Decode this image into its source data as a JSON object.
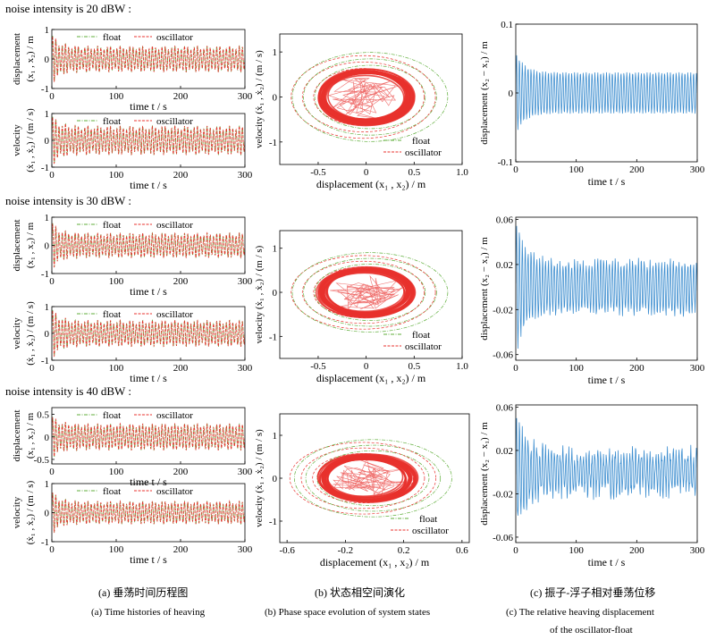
{
  "noise_rows": [
    {
      "label": "noise intensity is 20 dBW :"
    },
    {
      "label": "noise intensity is 30 dBW :"
    },
    {
      "label": "noise intensity is 40 dBW :"
    }
  ],
  "legend": {
    "float": "float",
    "oscillator": "oscillator"
  },
  "colors": {
    "float": "#5fae3a",
    "oscillator": "#e8312d",
    "relative": "#3f8fd0",
    "axis": "#000000"
  },
  "panel_labels": {
    "time_x": "time t / s",
    "disp_y_l1": "displacement",
    "disp_y_l2": "(x₁ , x₂) / m",
    "vel_y_l1": "velocity",
    "vel_y_l2": "(ẋ₁ , ẋ₂) / (m / s)",
    "phase_x": "displacement  (x₁ , x₂) / m",
    "phase_y": "velocity (ẋ₁ , ẋ₂) / (m / s)",
    "rel_y": "displacement (x₂ − x₁) / m"
  },
  "captions": {
    "a_cn": "(a) 垂荡时间历程图",
    "a_en": "(a) Time histories of heaving",
    "b_cn": "(b) 状态相空间演化",
    "b_en": "(b) Phase space evolution of system states",
    "c_cn": "(c) 振子-浮子相对垂荡位移",
    "c_en_1": "(c) The relative heaving displacement",
    "c_en_2": "of the oscillator-float"
  },
  "chart_data": [
    {
      "id": "a1",
      "type": "line",
      "noise": "20 dBW",
      "xlabel": "time t / s",
      "ylabel": "displacement (x1, x2) / m",
      "xlim": [
        0,
        300
      ],
      "ylim": [
        -1,
        1
      ],
      "xticks": [
        0,
        100,
        200,
        300
      ],
      "yticks": [
        -1,
        0,
        1
      ],
      "series": [
        {
          "name": "float",
          "style": "dash-dot",
          "amplitude": 0.45,
          "initial_peak": 0.9,
          "period_s": 5
        },
        {
          "name": "oscillator",
          "style": "dashed",
          "amplitude": 0.45,
          "initial_peak": 0.9,
          "period_s": 5
        }
      ],
      "legend": "top-right"
    },
    {
      "id": "a2",
      "type": "line",
      "noise": "20 dBW",
      "xlabel": "time t / s",
      "ylabel": "velocity (ẋ1, ẋ2) / (m/s)",
      "xlim": [
        0,
        300
      ],
      "ylim": [
        -1,
        1
      ],
      "xticks": [
        0,
        100,
        200,
        300
      ],
      "yticks": [
        -1,
        0,
        1
      ],
      "series": [
        {
          "name": "float",
          "style": "dash-dot",
          "amplitude": 0.55,
          "initial_peak": 1.0,
          "period_s": 5
        },
        {
          "name": "oscillator",
          "style": "dashed",
          "amplitude": 0.55,
          "initial_peak": 1.0,
          "period_s": 5
        }
      ],
      "legend": "top-right"
    },
    {
      "id": "b1",
      "type": "line",
      "noise": "20 dBW",
      "xlabel": "displacement (x1, x2) / m",
      "ylabel": "velocity (ẋ1, ẋ2) / (m/s)",
      "xlim": [
        -0.9,
        1.0
      ],
      "ylim": [
        -1.5,
        1.4
      ],
      "xticks": [
        -0.5,
        0,
        0.5,
        1.0
      ],
      "yticks": [
        -1,
        0,
        1
      ],
      "orbit": {
        "center_x": 0.0,
        "radius_x": 0.45,
        "radius_y": 0.55
      },
      "series": [
        {
          "name": "float"
        },
        {
          "name": "oscillator"
        }
      ],
      "legend": "bottom-right"
    },
    {
      "id": "c1",
      "type": "line",
      "noise": "20 dBW",
      "xlabel": "time t / s",
      "ylabel": "displacement (x2 − x1) / m",
      "xlim": [
        0,
        300
      ],
      "ylim": [
        -0.1,
        0.1
      ],
      "xticks": [
        0,
        100,
        200,
        300
      ],
      "yticks": [
        -0.1,
        0,
        0.1
      ],
      "series": [
        {
          "amplitude": 0.03,
          "initial_peak": 0.06
        }
      ]
    },
    {
      "id": "a3",
      "type": "line",
      "noise": "30 dBW",
      "xlabel": "time t / s",
      "ylabel": "displacement (x1, x2) / m",
      "xlim": [
        0,
        300
      ],
      "ylim": [
        -1,
        1
      ],
      "xticks": [
        0,
        100,
        200,
        300
      ],
      "yticks": [
        -1,
        0,
        1
      ],
      "series": [
        {
          "name": "float",
          "style": "dash-dot",
          "amplitude": 0.45,
          "initial_peak": 0.9,
          "period_s": 5
        },
        {
          "name": "oscillator",
          "style": "dashed",
          "amplitude": 0.45,
          "initial_peak": 0.9,
          "period_s": 5
        }
      ],
      "legend": "top-right"
    },
    {
      "id": "a4",
      "type": "line",
      "noise": "30 dBW",
      "xlabel": "time t / s",
      "ylabel": "velocity (ẋ1, ẋ2) / (m/s)",
      "xlim": [
        0,
        300
      ],
      "ylim": [
        -1,
        1
      ],
      "xticks": [
        0,
        100,
        200,
        300
      ],
      "yticks": [
        -1,
        0,
        1
      ],
      "series": [
        {
          "name": "float",
          "style": "dash-dot",
          "amplitude": 0.5,
          "initial_peak": 1.0,
          "period_s": 5
        },
        {
          "name": "oscillator",
          "style": "dashed",
          "amplitude": 0.5,
          "initial_peak": 1.0,
          "period_s": 5
        }
      ],
      "legend": "top-right"
    },
    {
      "id": "b2",
      "type": "line",
      "noise": "30 dBW",
      "xlabel": "displacement (x1, x2) / m",
      "ylabel": "velocity (ẋ1, ẋ2) / (m/s)",
      "xlim": [
        -0.9,
        1.0
      ],
      "ylim": [
        -1.5,
        1.4
      ],
      "xticks": [
        -0.5,
        0,
        0.5,
        1.0
      ],
      "yticks": [
        -1,
        0,
        1
      ],
      "orbit": {
        "center_x": 0.0,
        "radius_x": 0.45,
        "radius_y": 0.5
      },
      "series": [
        {
          "name": "float"
        },
        {
          "name": "oscillator"
        }
      ],
      "legend": "bottom-right"
    },
    {
      "id": "c2",
      "type": "line",
      "noise": "30 dBW",
      "xlabel": "time t / s",
      "ylabel": "displacement (x2 − x1) / m",
      "xlim": [
        0,
        300
      ],
      "ylim": [
        -0.065,
        0.062
      ],
      "xticks": [
        0,
        100,
        200,
        300
      ],
      "yticks": [
        -0.06,
        -0.02,
        0.02,
        0.06
      ],
      "series": [
        {
          "amplitude": 0.022,
          "initial_peak": 0.06
        }
      ]
    },
    {
      "id": "a5",
      "type": "line",
      "noise": "40 dBW",
      "xlabel": "time t / s",
      "ylabel": "displacement (x1, x2) / m",
      "xlim": [
        0,
        300
      ],
      "ylim": [
        -0.6,
        0.65
      ],
      "xticks": [
        0,
        100,
        200,
        300
      ],
      "yticks": [
        -0.5,
        0,
        0.5
      ],
      "series": [
        {
          "name": "float",
          "style": "dash-dot",
          "amplitude": 0.3,
          "initial_peak": 0.5,
          "period_s": 5
        },
        {
          "name": "oscillator",
          "style": "dashed",
          "amplitude": 0.3,
          "initial_peak": 0.5,
          "period_s": 5
        }
      ],
      "legend": "top-right"
    },
    {
      "id": "a6",
      "type": "line",
      "noise": "40 dBW",
      "xlabel": "time t / s",
      "ylabel": "velocity (ẋ1, ẋ2) / (m/s)",
      "xlim": [
        0,
        300
      ],
      "ylim": [
        -1,
        1
      ],
      "xticks": [
        0,
        100,
        200,
        300
      ],
      "yticks": [
        -1,
        0,
        1
      ],
      "series": [
        {
          "name": "float",
          "style": "dash-dot",
          "amplitude": 0.4,
          "initial_peak": 0.8,
          "period_s": 5
        },
        {
          "name": "oscillator",
          "style": "dashed",
          "amplitude": 0.4,
          "initial_peak": 0.8,
          "period_s": 5
        }
      ],
      "legend": "top-right"
    },
    {
      "id": "b3",
      "type": "line",
      "noise": "40 dBW",
      "xlabel": "displacement (x1, x2) / m",
      "ylabel": "velocity (ẋ1, ẋ2) / (m/s)",
      "xlim": [
        -0.65,
        0.65
      ],
      "ylim": [
        -1.5,
        1.5
      ],
      "xticks": [
        -0.6,
        -0.2,
        0.2,
        0.6
      ],
      "yticks": [
        -1,
        0,
        1
      ],
      "orbit": {
        "center_x": -0.05,
        "radius_x": 0.3,
        "radius_y": 0.5
      },
      "series": [
        {
          "name": "float"
        },
        {
          "name": "oscillator"
        }
      ],
      "legend": "bottom-right"
    },
    {
      "id": "c3",
      "type": "line",
      "noise": "40 dBW",
      "xlabel": "time t / s",
      "ylabel": "displacement (x2 − x1) / m",
      "xlim": [
        0,
        300
      ],
      "ylim": [
        -0.065,
        0.062
      ],
      "xticks": [
        0,
        100,
        200,
        300
      ],
      "yticks": [
        -0.06,
        -0.02,
        0.02,
        0.06
      ],
      "series": [
        {
          "amplitude": 0.018,
          "initial_peak": 0.055
        }
      ]
    }
  ]
}
